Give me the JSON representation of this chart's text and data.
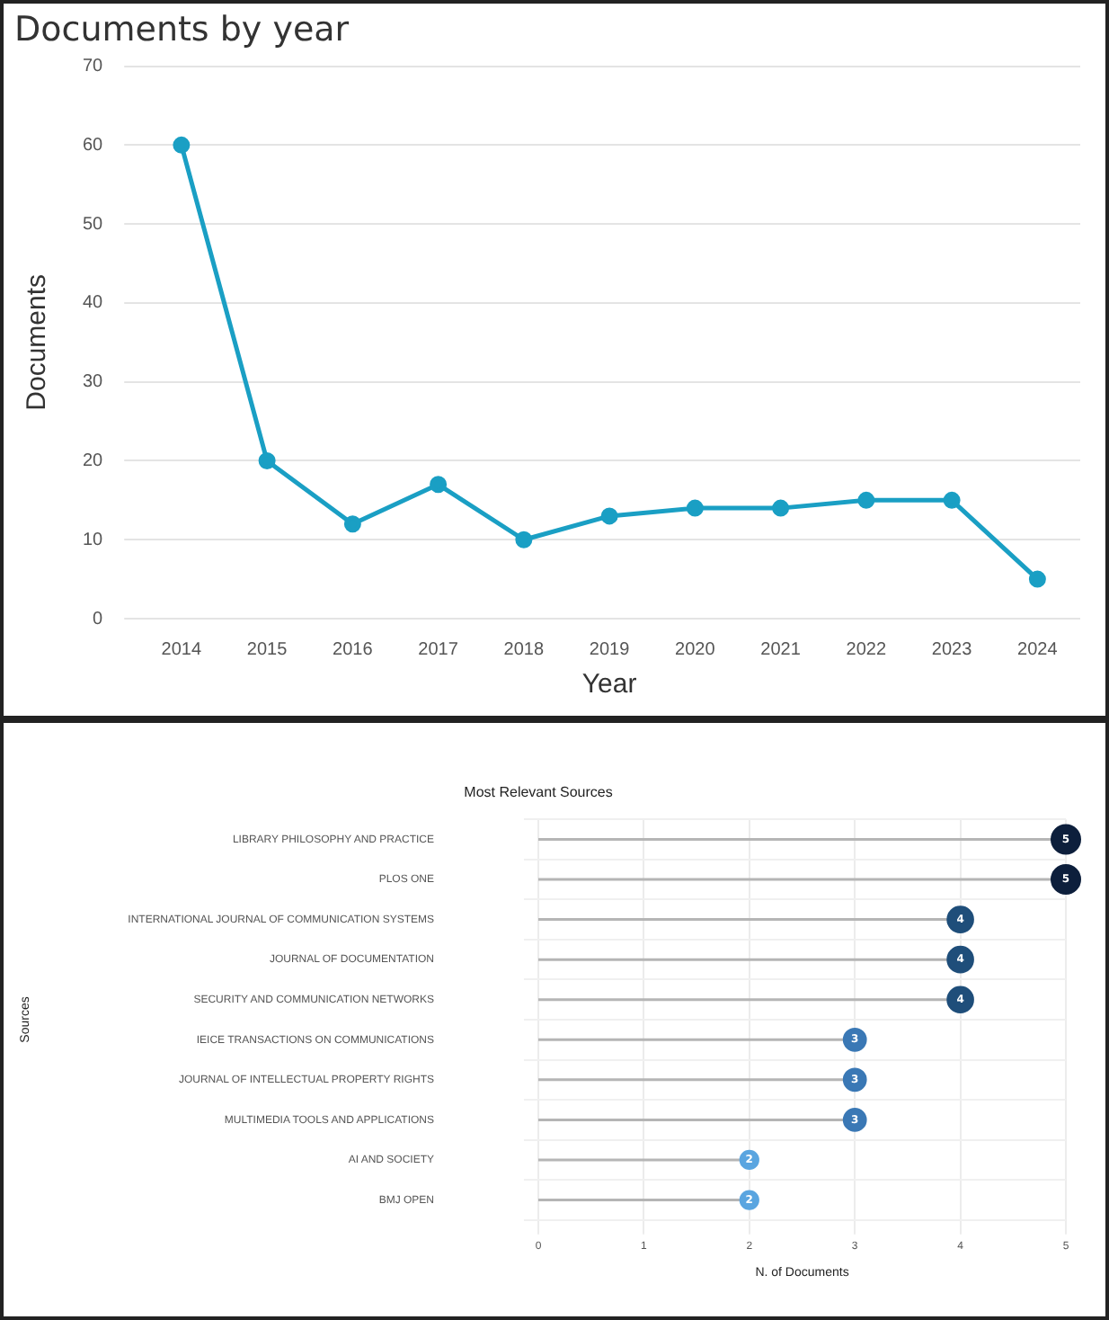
{
  "chart_data": [
    {
      "type": "line",
      "title": "Documents by year",
      "xlabel": "Year",
      "ylabel": "Documents",
      "categories": [
        "2014",
        "2015",
        "2016",
        "2017",
        "2018",
        "2019",
        "2020",
        "2021",
        "2022",
        "2023",
        "2024"
      ],
      "series": [
        {
          "color": "#1a9fc4",
          "values": [
            60,
            20,
            12,
            17,
            10,
            13,
            14,
            14,
            15,
            15,
            5
          ]
        }
      ],
      "ylim": [
        0,
        70
      ],
      "yticks": [
        0,
        10,
        20,
        30,
        40,
        50,
        60,
        70
      ],
      "grid": "y",
      "legend": false,
      "marker": "circle",
      "line_style": "solid"
    },
    {
      "type": "lollipop",
      "orientation": "horizontal",
      "title": "Most Relevant Sources",
      "xlabel": "N. of Documents",
      "ylabel": "Sources",
      "categories": [
        "LIBRARY PHILOSOPHY AND PRACTICE",
        "PLOS ONE",
        "INTERNATIONAL JOURNAL OF COMMUNICATION SYSTEMS",
        "JOURNAL OF DOCUMENTATION",
        "SECURITY AND COMMUNICATION NETWORKS",
        "IEICE TRANSACTIONS ON COMMUNICATIONS",
        "JOURNAL OF INTELLECTUAL PROPERTY RIGHTS",
        "MULTIMEDIA TOOLS AND APPLICATIONS",
        "AI AND SOCIETY",
        "BMJ OPEN"
      ],
      "values": [
        5,
        5,
        4,
        4,
        4,
        3,
        3,
        3,
        2,
        2
      ],
      "sizes": [
        1,
        1,
        0.8,
        0.8,
        0.8,
        0.6,
        0.6,
        0.6,
        0.4,
        0.4
      ],
      "colors": [
        "#0d1f3c",
        "#0d1f3c",
        "#1f4e7a",
        "#1f4e7a",
        "#1f4e7a",
        "#3a78b5",
        "#3a78b5",
        "#3a78b5",
        "#5aa5e0",
        "#5aa5e0"
      ],
      "xlim": [
        0,
        5
      ],
      "xticks": [
        0,
        1,
        2,
        3,
        4,
        5
      ],
      "grid": true,
      "legend": false,
      "data_labels": true
    }
  ]
}
